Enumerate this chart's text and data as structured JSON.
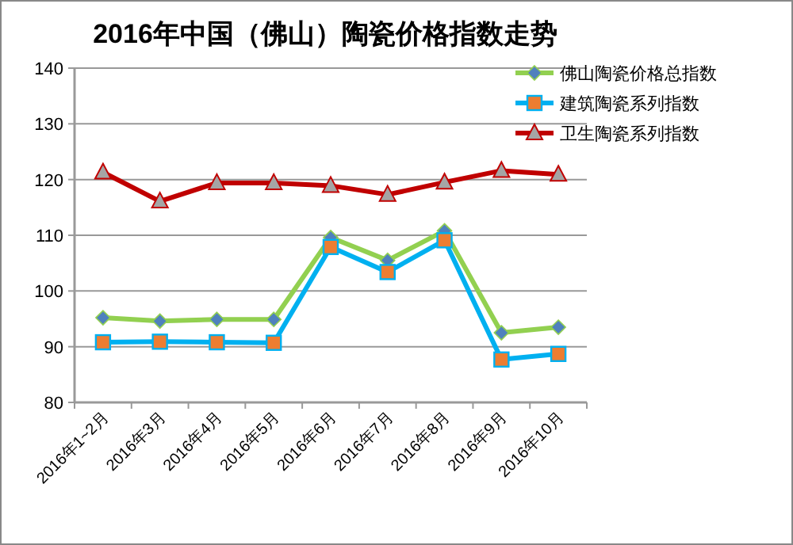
{
  "chart_data": {
    "type": "line",
    "title": "2016年中国（佛山）陶瓷价格指数走势",
    "categories": [
      "2016年1~2月",
      "2016年3月",
      "2016年4月",
      "2016年5月",
      "2016年6月",
      "2016年7月",
      "2016年8月",
      "2016年9月",
      "2016年10月"
    ],
    "series": [
      {
        "name": "佛山陶瓷价格总指数",
        "color": "#92d050",
        "marker": "diamond",
        "values": [
          95.2,
          94.6,
          94.9,
          94.9,
          109.6,
          105.5,
          110.8,
          92.5,
          93.5
        ]
      },
      {
        "name": "建筑陶瓷系列指数",
        "color": "#00b0f0",
        "marker": "square",
        "values": [
          90.8,
          90.9,
          90.8,
          90.7,
          107.9,
          103.4,
          109.1,
          87.7,
          88.7
        ]
      },
      {
        "name": "卫生陶瓷系列指数",
        "color": "#c00000",
        "marker": "triangle",
        "values": [
          121.3,
          116.1,
          119.4,
          119.4,
          118.9,
          117.3,
          119.5,
          121.6,
          120.9
        ]
      }
    ],
    "ylim": [
      80,
      140
    ],
    "yticks": [
      80,
      90,
      100,
      110,
      120,
      130,
      140
    ],
    "grid": "y",
    "legend": "top right",
    "line_style": "solid"
  }
}
